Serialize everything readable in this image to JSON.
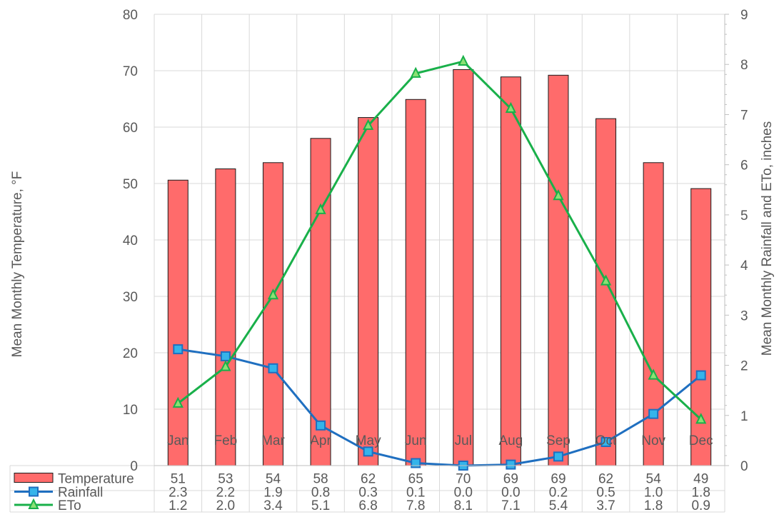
{
  "chart_data": {
    "type": "bar",
    "title": "",
    "categories": [
      "Jan",
      "Feb",
      "Mar",
      "Apr",
      "May",
      "Jun",
      "Jul",
      "Aug",
      "Sep",
      "Oct",
      "Nov",
      "Dec"
    ],
    "y_left": {
      "label": "Mean Monthly Temperature, °F",
      "ylim": [
        0,
        80
      ],
      "ticks": [
        "0",
        "10",
        "20",
        "30",
        "40",
        "50",
        "60",
        "70",
        "80"
      ]
    },
    "y_right": {
      "label": "Mean Monthly Rainfall and ETo, inches",
      "ylim": [
        0,
        9
      ],
      "ticks": [
        "0",
        "1",
        "2",
        "3",
        "4",
        "5",
        "6",
        "7",
        "8",
        "9"
      ]
    },
    "grid": true,
    "legend": "data-table",
    "series": [
      {
        "name": "Temperature",
        "type": "bar",
        "axis": "left",
        "color": "#ff6b6b",
        "values": [
          50.6,
          52.6,
          53.7,
          58.0,
          61.7,
          64.9,
          70.2,
          68.9,
          69.2,
          61.5,
          53.7,
          49.1
        ],
        "labels": [
          "51",
          "53",
          "54",
          "58",
          "62",
          "65",
          "70",
          "69",
          "69",
          "62",
          "54",
          "49"
        ]
      },
      {
        "name": "Rainfall",
        "type": "line",
        "axis": "right",
        "color": "#1f6fc0",
        "marker": "square",
        "marker_fill": "#35b4ea",
        "values": [
          2.32,
          2.18,
          1.94,
          0.8,
          0.28,
          0.05,
          0.0,
          0.02,
          0.18,
          0.47,
          1.03,
          1.8
        ],
        "labels": [
          "2.3",
          "2.2",
          "1.9",
          "0.8",
          "0.3",
          "0.1",
          "0.0",
          "0.0",
          "0.2",
          "0.5",
          "1.0",
          "1.8"
        ]
      },
      {
        "name": "ETo",
        "type": "line",
        "axis": "right",
        "color": "#19b04a",
        "marker": "triangle",
        "marker_fill": "#8ce074",
        "values": [
          1.24,
          1.97,
          3.4,
          5.1,
          6.78,
          7.82,
          8.06,
          7.12,
          5.38,
          3.68,
          1.8,
          0.92
        ],
        "labels": [
          "1.2",
          "2.0",
          "3.4",
          "5.1",
          "6.8",
          "7.8",
          "8.1",
          "7.1",
          "5.4",
          "3.7",
          "1.8",
          "0.9"
        ]
      }
    ]
  }
}
